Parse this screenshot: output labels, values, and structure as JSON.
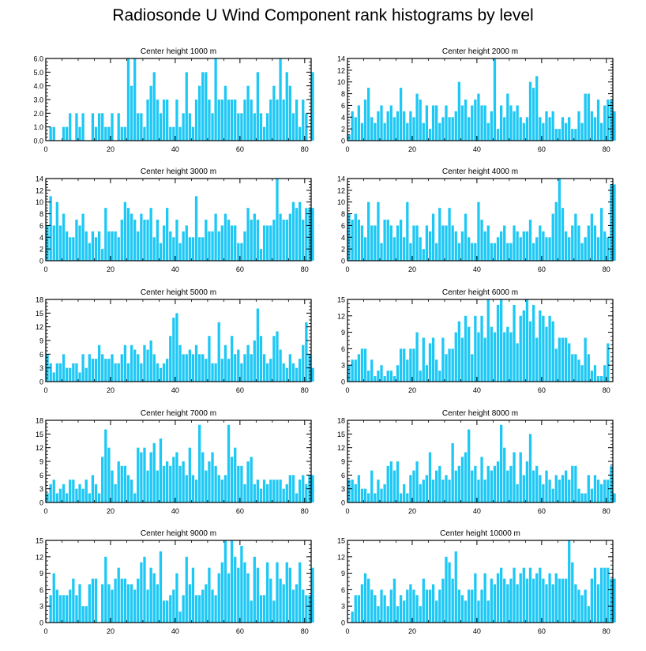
{
  "title": "Radiosonde U Wind Component rank histograms by level",
  "colors": {
    "bar": "#1ec8f5",
    "axis": "#000000",
    "text": "#000000"
  },
  "chart_data": [
    {
      "type": "bar",
      "title": "Center height 1000 m",
      "ylim": [
        0,
        6
      ],
      "yticks": [
        0,
        1,
        2,
        3,
        4,
        5,
        6
      ],
      "yticklabels": [
        "0.0",
        "1.0",
        "2.0",
        "3.0",
        "4.0",
        "5.0",
        "6.0"
      ],
      "xlim": [
        0,
        82
      ],
      "xticks": [
        0,
        20,
        40,
        60,
        80
      ],
      "xticklabels": [
        "0",
        "20",
        "40",
        "60",
        "80"
      ],
      "values": [
        0,
        1,
        1,
        0,
        0,
        1,
        1,
        2,
        0,
        2,
        1,
        2,
        0,
        0,
        2,
        1,
        2,
        2,
        1,
        1,
        2,
        0,
        2,
        1,
        1,
        6,
        4,
        6,
        2,
        2,
        1,
        3,
        4,
        5,
        3,
        2,
        3,
        3,
        1,
        1,
        3,
        1,
        2,
        5,
        2,
        1,
        3,
        4,
        5,
        5,
        3,
        2,
        6,
        3,
        3,
        4,
        3,
        3,
        3,
        2,
        2,
        3,
        4,
        3,
        2,
        5,
        2,
        1,
        2,
        3,
        4,
        3,
        6,
        3,
        5,
        4,
        2,
        3,
        1,
        3,
        2,
        0,
        5
      ]
    },
    {
      "type": "bar",
      "title": "Center height 2000 m",
      "ylim": [
        0,
        14
      ],
      "yticks": [
        0,
        2,
        4,
        6,
        8,
        10,
        12,
        14
      ],
      "yticklabels": [
        "0",
        "2",
        "4",
        "6",
        "8",
        "10",
        "12",
        "14"
      ],
      "xlim": [
        0,
        82
      ],
      "xticks": [
        0,
        20,
        40,
        60,
        80
      ],
      "xticklabels": [
        "0",
        "20",
        "40",
        "60",
        "80"
      ],
      "values": [
        1,
        5,
        4,
        6,
        3,
        7,
        9,
        4,
        3,
        5,
        6,
        3,
        5,
        6,
        4,
        5,
        9,
        5,
        3,
        5,
        4,
        8,
        7,
        3,
        6,
        2,
        6,
        6,
        3,
        4,
        6,
        4,
        4,
        5,
        10,
        6,
        7,
        4,
        6,
        7,
        8,
        6,
        6,
        3,
        5,
        14,
        2,
        6,
        4,
        8,
        6,
        5,
        6,
        4,
        3,
        4,
        10,
        9,
        11,
        4,
        3,
        5,
        4,
        5,
        2,
        2,
        4,
        3,
        4,
        2,
        2,
        5,
        3,
        8,
        8,
        5,
        4,
        7,
        3,
        6,
        7,
        7,
        5
      ]
    },
    {
      "type": "bar",
      "title": "Center height 3000 m",
      "ylim": [
        0,
        14
      ],
      "yticks": [
        0,
        2,
        4,
        6,
        8,
        10,
        12,
        14
      ],
      "yticklabels": [
        "0",
        "2",
        "4",
        "6",
        "8",
        "10",
        "12",
        "14"
      ],
      "xlim": [
        0,
        82
      ],
      "xticks": [
        0,
        20,
        40,
        60,
        80
      ],
      "xticklabels": [
        "0",
        "20",
        "40",
        "60",
        "80"
      ],
      "values": [
        6,
        11,
        6,
        10,
        6,
        8,
        5,
        4,
        4,
        7,
        6,
        8,
        5,
        3,
        5,
        4,
        5,
        2,
        9,
        5,
        5,
        5,
        4,
        7,
        10,
        9,
        8,
        7,
        5,
        8,
        7,
        7,
        9,
        4,
        7,
        3,
        6,
        9,
        5,
        4,
        7,
        3,
        5,
        6,
        4,
        4,
        11,
        4,
        4,
        7,
        5,
        5,
        8,
        5,
        6,
        8,
        7,
        6,
        6,
        3,
        3,
        5,
        9,
        7,
        8,
        7,
        2,
        6,
        6,
        6,
        7,
        14,
        8,
        7,
        7,
        8,
        10,
        9,
        10,
        7,
        9,
        9,
        9
      ]
    },
    {
      "type": "bar",
      "title": "Center height 4000 m",
      "ylim": [
        0,
        14
      ],
      "yticks": [
        0,
        2,
        4,
        6,
        8,
        10,
        12,
        14
      ],
      "yticklabels": [
        "0",
        "2",
        "4",
        "6",
        "8",
        "10",
        "12",
        "14"
      ],
      "xlim": [
        0,
        82
      ],
      "xticks": [
        0,
        20,
        40,
        60,
        80
      ],
      "xticklabels": [
        "0",
        "20",
        "40",
        "60",
        "80"
      ],
      "values": [
        8,
        7,
        8,
        7,
        6,
        4,
        10,
        6,
        6,
        10,
        3,
        7,
        7,
        6,
        4,
        6,
        7,
        4,
        10,
        3,
        6,
        6,
        4,
        2,
        6,
        5,
        8,
        3,
        9,
        6,
        6,
        9,
        6,
        5,
        3,
        5,
        8,
        4,
        3,
        3,
        10,
        7,
        5,
        6,
        3,
        3,
        4,
        5,
        6,
        3,
        3,
        6,
        5,
        4,
        5,
        5,
        7,
        3,
        4,
        6,
        5,
        4,
        4,
        8,
        10,
        14,
        9,
        5,
        4,
        6,
        8,
        6,
        3,
        4,
        6,
        8,
        6,
        4,
        9,
        5,
        4,
        13,
        13
      ]
    },
    {
      "type": "bar",
      "title": "Center height 5000 m",
      "ylim": [
        0,
        18
      ],
      "yticks": [
        0,
        3,
        6,
        9,
        12,
        15,
        18
      ],
      "yticklabels": [
        "0",
        "3",
        "6",
        "9",
        "12",
        "15",
        "18"
      ],
      "xlim": [
        0,
        82
      ],
      "xticks": [
        0,
        20,
        40,
        60,
        80
      ],
      "xticklabels": [
        "0",
        "20",
        "40",
        "60",
        "80"
      ],
      "values": [
        6,
        4,
        2,
        4,
        4,
        6,
        3,
        3,
        4,
        4,
        2,
        6,
        3,
        6,
        5,
        5,
        8,
        6,
        5,
        5,
        6,
        4,
        4,
        6,
        8,
        4,
        8,
        7,
        6,
        4,
        8,
        7,
        9,
        6,
        4,
        3,
        4,
        5,
        10,
        14,
        15,
        8,
        6,
        6,
        7,
        6,
        8,
        6,
        6,
        5,
        10,
        4,
        4,
        13,
        5,
        8,
        5,
        10,
        6,
        7,
        4,
        6,
        8,
        6,
        9,
        16,
        10,
        6,
        4,
        5,
        10,
        11,
        7,
        4,
        3,
        6,
        4,
        3,
        5,
        8,
        13,
        6,
        3
      ]
    },
    {
      "type": "bar",
      "title": "Center height 6000 m",
      "ylim": [
        0,
        15
      ],
      "yticks": [
        0,
        3,
        6,
        9,
        12,
        15
      ],
      "yticklabels": [
        "0",
        "3",
        "6",
        "9",
        "12",
        "15"
      ],
      "xlim": [
        0,
        82
      ],
      "xticks": [
        0,
        20,
        40,
        60,
        80
      ],
      "xticklabels": [
        "0",
        "20",
        "40",
        "60",
        "80"
      ],
      "values": [
        3,
        4,
        4,
        5,
        6,
        6,
        2,
        4,
        1,
        2,
        3,
        1,
        2,
        2,
        1,
        3,
        6,
        6,
        4,
        6,
        6,
        9,
        2,
        8,
        3,
        7,
        8,
        4,
        2,
        8,
        5,
        6,
        6,
        9,
        11,
        8,
        12,
        10,
        5,
        12,
        9,
        12,
        8,
        15,
        10,
        9,
        14,
        15,
        9,
        10,
        9,
        14,
        7,
        12,
        13,
        15,
        11,
        14,
        8,
        13,
        12,
        10,
        12,
        11,
        6,
        8,
        8,
        8,
        7,
        5,
        5,
        4,
        3,
        8,
        5,
        2,
        3,
        1,
        1,
        3,
        7,
        0,
        0
      ]
    },
    {
      "type": "bar",
      "title": "Center height 7000 m",
      "ylim": [
        0,
        18
      ],
      "yticks": [
        0,
        3,
        6,
        9,
        12,
        15,
        18
      ],
      "yticklabels": [
        "0",
        "3",
        "6",
        "9",
        "12",
        "15",
        "18"
      ],
      "xlim": [
        0,
        82
      ],
      "xticks": [
        0,
        20,
        40,
        60,
        80
      ],
      "xticklabels": [
        "0",
        "20",
        "40",
        "60",
        "80"
      ],
      "values": [
        2,
        4,
        5,
        2,
        3,
        4,
        2,
        5,
        5,
        3,
        4,
        3,
        5,
        2,
        6,
        4,
        2,
        10,
        16,
        12,
        7,
        4,
        9,
        8,
        8,
        6,
        5,
        2,
        12,
        11,
        12,
        7,
        11,
        13,
        7,
        14,
        8,
        9,
        8,
        10,
        11,
        8,
        9,
        6,
        12,
        6,
        5,
        17,
        11,
        7,
        9,
        11,
        8,
        6,
        5,
        6,
        17,
        10,
        12,
        8,
        8,
        4,
        9,
        10,
        4,
        5,
        3,
        5,
        4,
        5,
        5,
        5,
        5,
        3,
        4,
        6,
        6,
        2,
        5,
        6,
        4,
        6,
        6
      ]
    },
    {
      "type": "bar",
      "title": "Center height 8000 m",
      "ylim": [
        0,
        18
      ],
      "yticks": [
        0,
        3,
        6,
        9,
        12,
        15,
        18
      ],
      "yticklabels": [
        "0",
        "3",
        "6",
        "9",
        "12",
        "15",
        "18"
      ],
      "xlim": [
        0,
        82
      ],
      "xticks": [
        0,
        20,
        40,
        60,
        80
      ],
      "xticklabels": [
        "0",
        "20",
        "40",
        "60",
        "80"
      ],
      "values": [
        5,
        5,
        4,
        6,
        3,
        3,
        2,
        7,
        2,
        5,
        3,
        4,
        8,
        9,
        7,
        9,
        2,
        4,
        2,
        6,
        7,
        9,
        4,
        5,
        6,
        11,
        5,
        7,
        8,
        5,
        6,
        5,
        13,
        7,
        8,
        10,
        11,
        16,
        7,
        8,
        5,
        10,
        5,
        8,
        7,
        8,
        9,
        17,
        12,
        7,
        8,
        11,
        4,
        11,
        6,
        9,
        15,
        7,
        8,
        6,
        4,
        7,
        5,
        3,
        6,
        5,
        6,
        7,
        5,
        8,
        8,
        3,
        2,
        2,
        6,
        3,
        6,
        5,
        4,
        5,
        5,
        8,
        2
      ]
    },
    {
      "type": "bar",
      "title": "Center height 9000 m",
      "ylim": [
        0,
        15
      ],
      "yticks": [
        0,
        3,
        6,
        9,
        12,
        15
      ],
      "yticklabels": [
        "0",
        "3",
        "6",
        "9",
        "12",
        "15"
      ],
      "xlim": [
        0,
        82
      ],
      "xticks": [
        0,
        20,
        40,
        60,
        80
      ],
      "xticklabels": [
        "0",
        "20",
        "40",
        "60",
        "80"
      ],
      "values": [
        0,
        5,
        9,
        6,
        5,
        5,
        5,
        6,
        8,
        5,
        7,
        3,
        3,
        7,
        8,
        8,
        0,
        7,
        12,
        7,
        6,
        8,
        10,
        8,
        8,
        7,
        7,
        6,
        8,
        11,
        12,
        6,
        10,
        9,
        7,
        13,
        4,
        4,
        5,
        6,
        9,
        2,
        5,
        12,
        7,
        10,
        5,
        5,
        6,
        7,
        10,
        6,
        5,
        9,
        11,
        15,
        9,
        15,
        12,
        10,
        14,
        11,
        9,
        4,
        12,
        10,
        5,
        5,
        11,
        8,
        4,
        11,
        8,
        7,
        11,
        10,
        6,
        7,
        11,
        6,
        5,
        5,
        10
      ]
    },
    {
      "type": "bar",
      "title": "Center height 10000 m",
      "ylim": [
        0,
        15
      ],
      "yticks": [
        0,
        3,
        6,
        9,
        12,
        15
      ],
      "yticklabels": [
        "0",
        "3",
        "6",
        "9",
        "12",
        "15"
      ],
      "xlim": [
        0,
        82
      ],
      "xticks": [
        0,
        20,
        40,
        60,
        80
      ],
      "xticklabels": [
        "0",
        "20",
        "40",
        "60",
        "80"
      ],
      "values": [
        0,
        2,
        5,
        5,
        7,
        9,
        8,
        6,
        5,
        3,
        6,
        5,
        3,
        6,
        8,
        3,
        5,
        4,
        6,
        7,
        6,
        5,
        3,
        8,
        6,
        6,
        7,
        4,
        6,
        8,
        12,
        11,
        8,
        13,
        6,
        5,
        4,
        6,
        6,
        9,
        4,
        6,
        9,
        4,
        8,
        7,
        9,
        10,
        8,
        7,
        8,
        10,
        7,
        9,
        10,
        8,
        10,
        8,
        9,
        10,
        8,
        7,
        9,
        7,
        9,
        8,
        8,
        8,
        15,
        11,
        7,
        6,
        5,
        6,
        3,
        8,
        10,
        7,
        10,
        10,
        10,
        8,
        8
      ]
    }
  ]
}
